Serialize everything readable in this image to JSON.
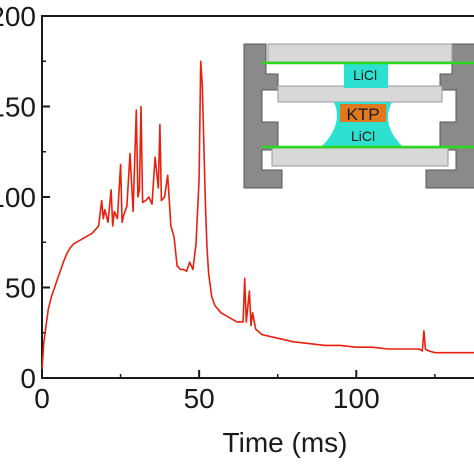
{
  "chart_data": {
    "type": "line",
    "title": "",
    "xlabel": "Time (ms)",
    "ylabel": "",
    "xlim": [
      0,
      140
    ],
    "ylim": [
      0,
      200
    ],
    "x_ticks": [
      0,
      50,
      100
    ],
    "y_ticks": [
      0,
      50,
      100,
      150,
      200
    ],
    "x_tick_labels": [
      "0",
      "50",
      "100"
    ],
    "y_tick_labels": [
      "0",
      "50",
      "100",
      "150",
      "200"
    ],
    "grid": false,
    "series": [
      {
        "color": "#e8200f",
        "x": [
          0,
          0.6,
          1.2,
          2,
          3,
          4,
          5,
          6,
          7,
          8,
          9,
          10,
          12,
          14,
          16,
          18,
          19,
          19.5,
          20,
          21,
          22,
          22.5,
          23,
          24,
          25,
          25.5,
          26,
          27,
          28,
          29,
          30,
          30.5,
          31,
          31.5,
          32,
          33,
          34,
          35,
          36,
          37,
          37.5,
          38,
          39,
          40,
          41,
          42,
          43,
          44,
          45,
          46,
          47,
          48,
          49,
          50,
          50.5,
          51,
          51.5,
          52,
          52.5,
          53,
          54,
          55,
          57,
          60,
          62,
          64,
          64.5,
          65,
          66,
          66.5,
          67,
          68,
          70,
          75,
          80,
          85,
          90,
          95,
          100,
          105,
          110,
          115,
          120,
          121,
          121.5,
          122,
          123,
          125,
          130,
          135,
          140
        ],
        "y": [
          5,
          20,
          28,
          38,
          45,
          50,
          55,
          60,
          65,
          69,
          72,
          74,
          76,
          78,
          80,
          84,
          98,
          88,
          93,
          86,
          104,
          84,
          92,
          88,
          118,
          86,
          90,
          95,
          124,
          92,
          148,
          100,
          104,
          150,
          97,
          98,
          100,
          96,
          122,
          105,
          140,
          98,
          100,
          112,
          84,
          78,
          62,
          60,
          60,
          59,
          64,
          60,
          74,
          110,
          175,
          162,
          128,
          96,
          72,
          58,
          45,
          40,
          36,
          33,
          31,
          31,
          55,
          31,
          48,
          29,
          36,
          27,
          24,
          22,
          20,
          19,
          18,
          18,
          17,
          17,
          16,
          16,
          16,
          15,
          26,
          16,
          15,
          14,
          14,
          14,
          14
        ]
      }
    ],
    "inset": {
      "labels": {
        "top_licl": "LiCl",
        "ktp": "KTP",
        "bottom_licl": "LiCl"
      }
    }
  }
}
